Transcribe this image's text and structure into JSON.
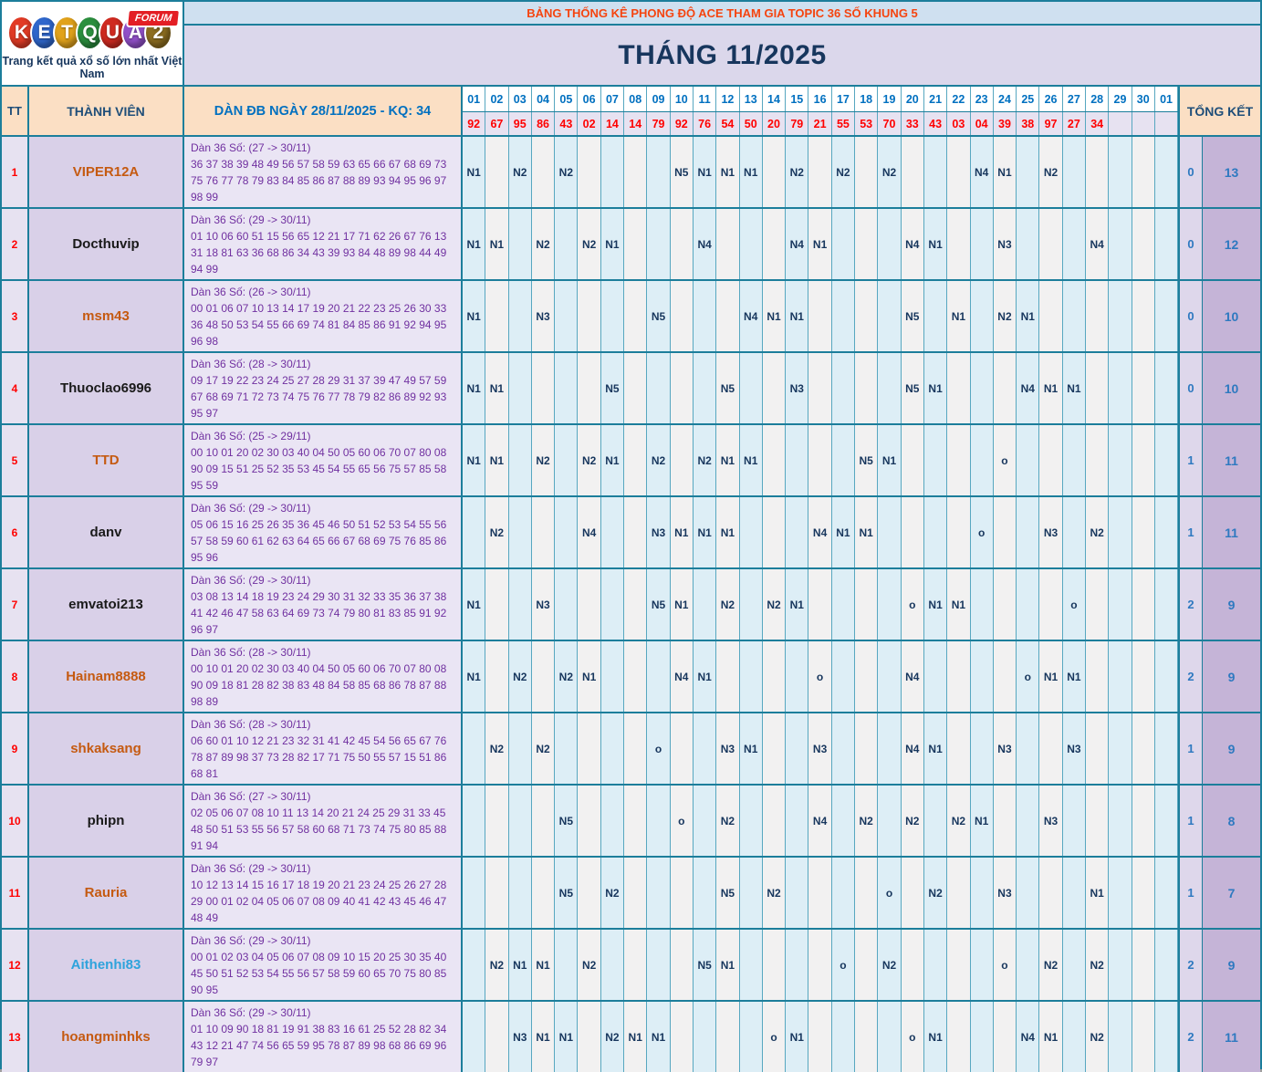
{
  "header": {
    "topic_title": "BẢNG THỐNG KÊ PHONG ĐỘ ACE THAM GIA TOPIC 36 SỐ KHUNG 5",
    "month_title": "THÁNG 11/2025",
    "logo": {
      "letters": [
        {
          "ch": "K",
          "color": "#e23b25"
        },
        {
          "ch": "E",
          "color": "#2f67cc"
        },
        {
          "ch": "T",
          "color": "#e1a21b"
        },
        {
          "ch": "Q",
          "color": "#2b8f3e"
        },
        {
          "ch": "U",
          "color": "#cf2a20"
        },
        {
          "ch": "A",
          "color": "#9150c8"
        },
        {
          "ch": "2",
          "color": "#8c6d20"
        }
      ],
      "forum_badge": "FORUM",
      "tagline": "Trang kết quả xổ số lớn nhất Việt Nam"
    }
  },
  "colors": {
    "border_teal": "#1c7e9b",
    "day_col_blue": "#ddeef6",
    "day_col_gray": "#f2f1f1",
    "header_peach": "#fbdfc4",
    "marker_navy": "#17365d",
    "result_red": "#ff0000",
    "dan_purple": "#7030a0",
    "total_blue": "#2e79c0",
    "member_orange": "#c55a11",
    "member_black": "#1a1a1a",
    "member_lightblue": "#2ea3dc"
  },
  "table": {
    "col_tt": "TT",
    "col_member": "THÀNH VIÊN",
    "col_dan": "DÀN ĐB NGÀY 28/11/2025 - KQ: 34",
    "col_total": "TỔNG KẾT",
    "days": [
      "01",
      "02",
      "03",
      "04",
      "05",
      "06",
      "07",
      "08",
      "09",
      "10",
      "11",
      "12",
      "13",
      "14",
      "15",
      "16",
      "17",
      "18",
      "19",
      "20",
      "21",
      "22",
      "23",
      "24",
      "25",
      "26",
      "27",
      "28",
      "29",
      "30",
      "01"
    ],
    "results": [
      "92",
      "67",
      "95",
      "86",
      "43",
      "02",
      "14",
      "14",
      "79",
      "92",
      "76",
      "54",
      "50",
      "20",
      "79",
      "21",
      "55",
      "53",
      "70",
      "33",
      "43",
      "03",
      "04",
      "39",
      "38",
      "97",
      "27",
      "34",
      "",
      "",
      ""
    ],
    "members": [
      {
        "tt": "1",
        "name": "VIPER12A",
        "name_color": "#c55a11",
        "dan_title": "Dàn 36 Số: (27 -> 30/11)",
        "dan_numbers": "36 37 38 39 48 49 56 57 58 59 63 65 66 67 68 69 73 75 76 77 78 79 83 84 85 86 87 88 89 93 94 95 96 97 98 99",
        "marks": {
          "1": "N1",
          "3": "N2",
          "5": "N2",
          "10": "N5",
          "11": "N1",
          "12": "N1",
          "13": "N1",
          "15": "N2",
          "17": "N2",
          "19": "N2",
          "23": "N4",
          "24": "N1",
          "26": "N2"
        },
        "o_total": "0",
        "n_total": "13"
      },
      {
        "tt": "2",
        "name": "Docthuvip",
        "name_color": "#1a1a1a",
        "dan_title": "Dàn 36 Số: (29 -> 30/11)",
        "dan_numbers": "01 10 06 60 51 15 56 65 12 21 17 71 62 26 67 76 13 31 18 81 63 36 68 86 34 43 39 93 84 48 89 98 44 49 94 99",
        "marks": {
          "1": "N1",
          "2": "N1",
          "4": "N2",
          "6": "N2",
          "7": "N1",
          "11": "N4",
          "15": "N4",
          "16": "N1",
          "20": "N4",
          "21": "N1",
          "24": "N3",
          "28": "N4"
        },
        "o_total": "0",
        "n_total": "12"
      },
      {
        "tt": "3",
        "name": "msm43",
        "name_color": "#c55a11",
        "dan_title": "Dàn 36 Số: (26 -> 30/11)",
        "dan_numbers": "00 01 06 07 10 13 14 17 19 20 21 22 23 25 26 30 33 36 48 50 53 54 55 66 69 74 81 84 85 86 91 92 94 95 96 98",
        "marks": {
          "1": "N1",
          "4": "N3",
          "9": "N5",
          "13": "N4",
          "14": "N1",
          "15": "N1",
          "20": "N5",
          "22": "N1",
          "24": "N2",
          "25": "N1"
        },
        "o_total": "0",
        "n_total": "10"
      },
      {
        "tt": "4",
        "name": "Thuoclao6996",
        "name_color": "#1a1a1a",
        "dan_title": "Dàn 36 Số: (28 -> 30/11)",
        "dan_numbers": "09 17 19 22 23 24 25 27 28 29 31 37 39 47 49 57 59 67 68 69 71 72 73 74 75 76 77 78 79 82 86 89 92 93 95 97",
        "marks": {
          "1": "N1",
          "2": "N1",
          "7": "N5",
          "12": "N5",
          "15": "N3",
          "20": "N5",
          "21": "N1",
          "25": "N4",
          "26": "N1",
          "27": "N1"
        },
        "o_total": "0",
        "n_total": "10"
      },
      {
        "tt": "5",
        "name": "TTD",
        "name_color": "#c55a11",
        "dan_title": "Dàn 36 Số: (25 -> 29/11)",
        "dan_numbers": "00 10 01 20 02 30 03 40 04 50 05 60 06 70 07 80 08 90 09 15 51 25 52 35 53 45 54 55 65 56 75 57 85 58 95 59",
        "marks": {
          "1": "N1",
          "2": "N1",
          "4": "N2",
          "6": "N2",
          "7": "N1",
          "9": "N2",
          "11": "N2",
          "12": "N1",
          "13": "N1",
          "18": "N5",
          "19": "N1",
          "24": "o"
        },
        "o_total": "1",
        "n_total": "11"
      },
      {
        "tt": "6",
        "name": "danv",
        "name_color": "#1a1a1a",
        "dan_title": "Dàn 36 Số: (29 -> 30/11)",
        "dan_numbers": "05 06 15 16 25 26 35 36 45 46 50 51 52 53 54 55 56 57 58 59 60 61 62 63 64 65 66 67 68 69 75 76 85 86 95 96",
        "marks": {
          "2": "N2",
          "6": "N4",
          "9": "N3",
          "10": "N1",
          "11": "N1",
          "12": "N1",
          "16": "N4",
          "17": "N1",
          "18": "N1",
          "23": "o",
          "26": "N3",
          "28": "N2"
        },
        "o_total": "1",
        "n_total": "11"
      },
      {
        "tt": "7",
        "name": "emvatoi213",
        "name_color": "#1a1a1a",
        "dan_title": "Dàn 36 Số: (29 -> 30/11)",
        "dan_numbers": "03 08 13 14 18 19 23 24 29 30 31 32 33 35 36 37 38 41 42 46 47 58 63 64 69 73 74 79 80 81 83 85 91 92 96 97",
        "marks": {
          "1": "N1",
          "4": "N3",
          "9": "N5",
          "10": "N1",
          "12": "N2",
          "14": "N2",
          "15": "N1",
          "20": "o",
          "21": "N1",
          "22": "N1",
          "27": "o"
        },
        "o_total": "2",
        "n_total": "9"
      },
      {
        "tt": "8",
        "name": "Hainam8888",
        "name_color": "#c55a11",
        "dan_title": "Dàn 36 Số: (28 -> 30/11)",
        "dan_numbers": "00 10 01 20 02 30 03 40 04 50 05 60 06 70 07 80 08 90 09 18 81 28 82 38 83 48 84 58 85 68 86 78 87 88 98 89",
        "marks": {
          "1": "N1",
          "3": "N2",
          "5": "N2",
          "6": "N1",
          "10": "N4",
          "11": "N1",
          "16": "o",
          "20": "N4",
          "25": "o",
          "26": "N1",
          "27": "N1"
        },
        "o_total": "2",
        "n_total": "9"
      },
      {
        "tt": "9",
        "name": "shkaksang",
        "name_color": "#c55a11",
        "dan_title": "Dàn 36 Số: (28 -> 30/11)",
        "dan_numbers": "06 60 01 10 12 21 23 32 31 41 42 45 54 56 65 67 76 78 87 89 98 37 73 28 82 17 71 75 50 55 57 15 51 86 68 81",
        "marks": {
          "2": "N2",
          "4": "N2",
          "9": "o",
          "12": "N3",
          "13": "N1",
          "16": "N3",
          "20": "N4",
          "21": "N1",
          "24": "N3",
          "27": "N3"
        },
        "o_total": "1",
        "n_total": "9"
      },
      {
        "tt": "10",
        "name": "phipn",
        "name_color": "#1a1a1a",
        "dan_title": "Dàn 36 Số: (27 -> 30/11)",
        "dan_numbers": "02 05 06 07 08 10 11 13 14 20 21 24 25 29 31 33 45 48 50 51 53 55 56 57 58 60 68 71 73 74 75 80 85 88 91 94",
        "marks": {
          "5": "N5",
          "10": "o",
          "12": "N2",
          "16": "N4",
          "18": "N2",
          "20": "N2",
          "22": "N2",
          "23": "N1",
          "26": "N3"
        },
        "o_total": "1",
        "n_total": "8"
      },
      {
        "tt": "11",
        "name": "Rauria",
        "name_color": "#c55a11",
        "dan_title": "Dàn 36 Số: (29 -> 30/11)",
        "dan_numbers": "10 12 13 14 15 16 17 18 19 20 21 23 24 25 26 27 28 29 00 01 02 04 05 06 07 08 09 40 41 42 43 45 46 47 48 49",
        "marks": {
          "5": "N5",
          "7": "N2",
          "12": "N5",
          "14": "N2",
          "19": "o",
          "21": "N2",
          "24": "N3",
          "28": "N1"
        },
        "o_total": "1",
        "n_total": "7"
      },
      {
        "tt": "12",
        "name": "Aithenhi83",
        "name_color": "#2ea3dc",
        "dan_title": "Dàn 36 Số: (29 -> 30/11)",
        "dan_numbers": "00 01 02 03 04 05 06 07 08 09 10 15 20 25 30 35 40 45 50 51 52 53 54 55 56 57 58 59 60 65 70 75 80 85 90 95",
        "marks": {
          "2": "N2",
          "3": "N1",
          "4": "N1",
          "6": "N2",
          "11": "N5",
          "12": "N1",
          "17": "o",
          "19": "N2",
          "24": "o",
          "26": "N2",
          "28": "N2"
        },
        "o_total": "2",
        "n_total": "9"
      },
      {
        "tt": "13",
        "name": "hoangminhks",
        "name_color": "#c55a11",
        "dan_title": "Dàn 36 Số: (29 -> 30/11)",
        "dan_numbers": "01 10 09 90 18 81 19 91 38 83 16 61 25 52 28 82 34 43 12 21 47 74 56 65 59 95 78 87 89 98 68 86 69 96 79 97",
        "marks": {
          "3": "N3",
          "4": "N1",
          "5": "N1",
          "7": "N2",
          "8": "N1",
          "9": "N1",
          "14": "o",
          "15": "N1",
          "20": "o",
          "21": "N1",
          "25": "N4",
          "26": "N1",
          "28": "N2"
        },
        "o_total": "2",
        "n_total": "11"
      }
    ]
  }
}
